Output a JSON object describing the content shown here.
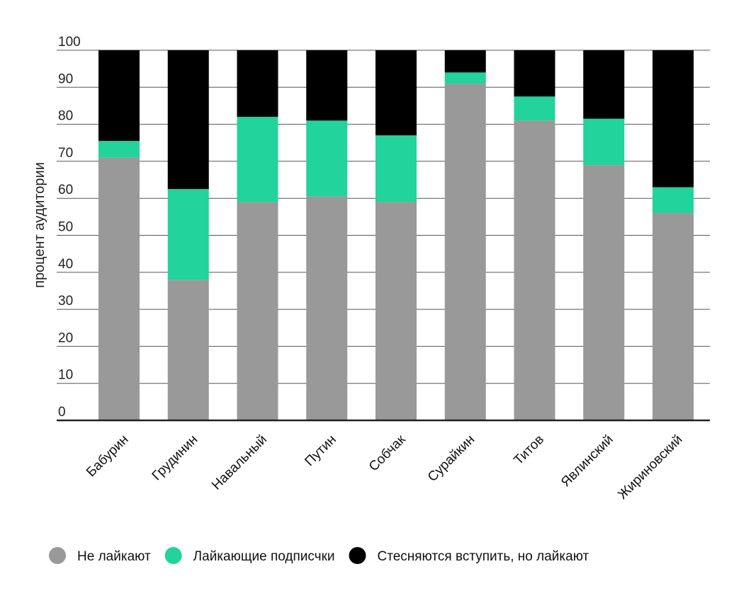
{
  "chart_data": {
    "type": "bar",
    "stacked": true,
    "title": "",
    "xlabel": "",
    "ylabel": "процент аудитории",
    "ylim": [
      0,
      100
    ],
    "yticks": [
      0,
      10,
      20,
      30,
      40,
      50,
      60,
      70,
      80,
      90,
      100
    ],
    "grid": true,
    "legend_position": "bottom",
    "categories": [
      "Бабурин",
      "Грудинин",
      "Навальный",
      "Путин",
      "Собчак",
      "Сурайкин",
      "Титов",
      "Явлинский",
      "Жириновский"
    ],
    "series": [
      {
        "name": "Не лайкают",
        "color": "#999999",
        "values": [
          71,
          38,
          59,
          60.5,
          59,
          91,
          81,
          69,
          56
        ]
      },
      {
        "name": "Лайкающие подписчки",
        "color": "#22d39b",
        "values": [
          4.5,
          24.5,
          23,
          20.5,
          18,
          3,
          6.5,
          12.5,
          7
        ]
      },
      {
        "name": "Стесняются вступить, но лайкают",
        "color": "#000000",
        "values": [
          24.5,
          37.5,
          18,
          19,
          23,
          6,
          12.5,
          18.5,
          37
        ]
      }
    ]
  }
}
